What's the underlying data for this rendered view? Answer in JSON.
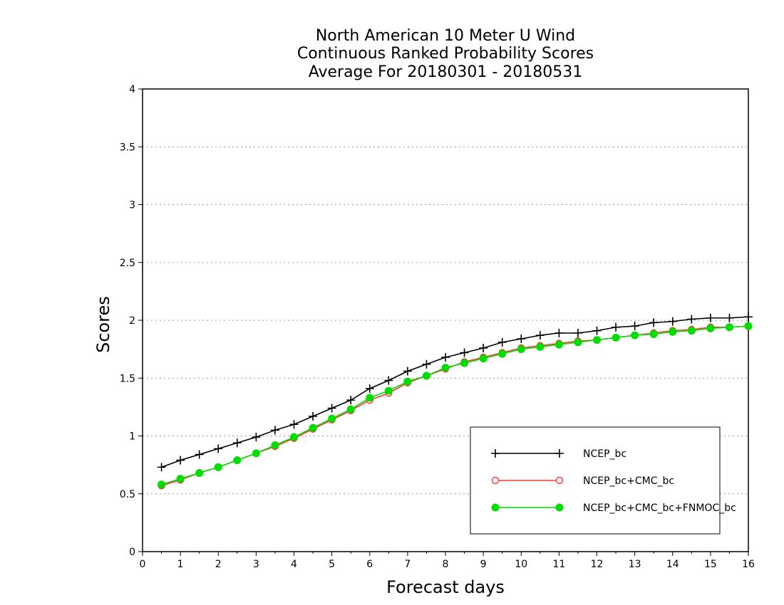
{
  "chart_data": {
    "type": "line",
    "title": [
      "North American 10 Meter U Wind",
      "Continuous Ranked Probability Scores",
      "Average For 20180301 - 20180531"
    ],
    "xlabel": "Forecast days",
    "ylabel": "Scores",
    "xlim": [
      0,
      16
    ],
    "ylim": [
      0,
      4
    ],
    "xticks": [
      "0",
      "1",
      "2",
      "3",
      "4",
      "5",
      "6",
      "7",
      "8",
      "9",
      "10",
      "11",
      "12",
      "13",
      "14",
      "15",
      "16"
    ],
    "yticks": [
      "0",
      "0.5",
      "1",
      "1.5",
      "2",
      "2.5",
      "3",
      "3.5",
      "4"
    ],
    "grid": "horizontal dotted",
    "legend_position": "bottom-right",
    "x": [
      0.5,
      1,
      1.5,
      2,
      2.5,
      3,
      3.5,
      4,
      4.5,
      5,
      5.5,
      6,
      6.5,
      7,
      7.5,
      8,
      8.5,
      9,
      9.5,
      10,
      10.5,
      11,
      11.5,
      12,
      12.5,
      13,
      13.5,
      14,
      14.5,
      15,
      15.5,
      16
    ],
    "series": [
      {
        "name": "NCEP_bc",
        "color": "#000000",
        "marker": "plus",
        "values": [
          0.73,
          0.79,
          0.84,
          0.89,
          0.94,
          0.99,
          1.05,
          1.1,
          1.17,
          1.24,
          1.31,
          1.41,
          1.48,
          1.56,
          1.62,
          1.68,
          1.72,
          1.76,
          1.81,
          1.84,
          1.87,
          1.89,
          1.89,
          1.91,
          1.94,
          1.95,
          1.98,
          1.99,
          2.01,
          2.02,
          2.02,
          2.03
        ]
      },
      {
        "name": "NCEP_bc+CMC_bc",
        "color": "#ff3333",
        "marker": "open-circle",
        "values": [
          0.57,
          0.62,
          0.68,
          0.73,
          0.79,
          0.85,
          0.91,
          0.98,
          1.06,
          1.14,
          1.22,
          1.31,
          1.37,
          1.46,
          1.52,
          1.58,
          1.64,
          1.68,
          1.72,
          1.76,
          1.78,
          1.8,
          1.82,
          1.83,
          1.85,
          1.87,
          1.89,
          1.91,
          1.92,
          1.94,
          1.94,
          1.95
        ]
      },
      {
        "name": "NCEP_bc+CMC_bc+FNMOC_bc",
        "color": "#00dd00",
        "marker": "filled-circle",
        "values": [
          0.58,
          0.63,
          0.68,
          0.73,
          0.79,
          0.85,
          0.92,
          0.99,
          1.07,
          1.15,
          1.23,
          1.33,
          1.39,
          1.47,
          1.52,
          1.59,
          1.63,
          1.67,
          1.71,
          1.75,
          1.77,
          1.79,
          1.81,
          1.83,
          1.85,
          1.87,
          1.88,
          1.9,
          1.91,
          1.93,
          1.94,
          1.95
        ]
      }
    ]
  }
}
